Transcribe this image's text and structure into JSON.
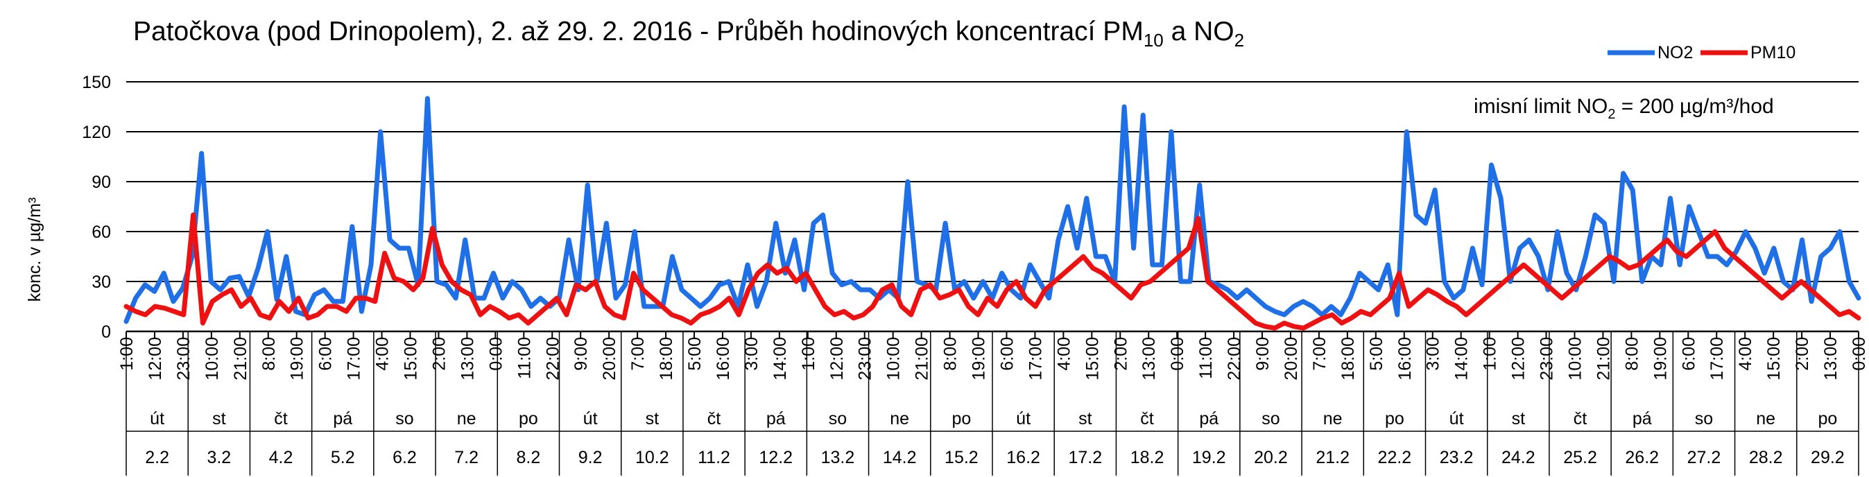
{
  "chart_data": {
    "type": "line",
    "title": "Patočkova (pod Drinopolem), 2. až 29. 2. 2016 - Průběh hodinových koncentrací PM",
    "title_sub1": "10",
    "title_mid": " a NO",
    "title_sub2": "2",
    "ylabel": "konc. v µg/m³",
    "ylim": [
      0,
      150
    ],
    "y_ticks": [
      "0",
      "30",
      "60",
      "90",
      "120",
      "150"
    ],
    "grid": true,
    "legend_position": "top-right",
    "annotation_main": "imisní limit NO",
    "annotation_sub": "2",
    "annotation_tail": " = 200 µg/m³/hod",
    "x_tick_labels": [
      "1:00",
      "12:00",
      "23:00",
      "10:00",
      "21:00",
      "8:00",
      "19:00",
      "6:00",
      "17:00",
      "4:00",
      "15:00",
      "2:00",
      "13:00",
      "0:00",
      "11:00",
      "22:00",
      "9:00",
      "20:00",
      "7:00",
      "18:00",
      "5:00",
      "16:00",
      "3:00",
      "14:00",
      "1:00",
      "12:00",
      "23:00",
      "10:00",
      "21:00",
      "8:00",
      "19:00",
      "6:00",
      "17:00",
      "4:00",
      "15:00",
      "2:00",
      "13:00",
      "0:00",
      "11:00",
      "22:00",
      "9:00",
      "20:00",
      "7:00",
      "18:00",
      "5:00",
      "16:00",
      "3:00",
      "14:00",
      "1:00",
      "12:00",
      "23:00",
      "10:00",
      "21:00",
      "8:00",
      "19:00",
      "6:00",
      "17:00",
      "4:00",
      "15:00",
      "2:00",
      "13:00",
      "0:00"
    ],
    "days": [
      {
        "weekday": "út",
        "date": "2.2"
      },
      {
        "weekday": "st",
        "date": "3.2"
      },
      {
        "weekday": "čt",
        "date": "4.2"
      },
      {
        "weekday": "pá",
        "date": "5.2"
      },
      {
        "weekday": "so",
        "date": "6.2"
      },
      {
        "weekday": "ne",
        "date": "7.2"
      },
      {
        "weekday": "po",
        "date": "8.2"
      },
      {
        "weekday": "út",
        "date": "9.2"
      },
      {
        "weekday": "st",
        "date": "10.2"
      },
      {
        "weekday": "čt",
        "date": "11.2"
      },
      {
        "weekday": "pá",
        "date": "12.2"
      },
      {
        "weekday": "so",
        "date": "13.2"
      },
      {
        "weekday": "ne",
        "date": "14.2"
      },
      {
        "weekday": "po",
        "date": "15.2"
      },
      {
        "weekday": "út",
        "date": "16.2"
      },
      {
        "weekday": "st",
        "date": "17.2"
      },
      {
        "weekday": "čt",
        "date": "18.2"
      },
      {
        "weekday": "pá",
        "date": "19.2"
      },
      {
        "weekday": "so",
        "date": "20.2"
      },
      {
        "weekday": "ne",
        "date": "21.2"
      },
      {
        "weekday": "po",
        "date": "22.2"
      },
      {
        "weekday": "út",
        "date": "23.2"
      },
      {
        "weekday": "st",
        "date": "24.2"
      },
      {
        "weekday": "čt",
        "date": "25.2"
      },
      {
        "weekday": "pá",
        "date": "26.2"
      },
      {
        "weekday": "so",
        "date": "27.2"
      },
      {
        "weekday": "ne",
        "date": "28.2"
      },
      {
        "weekday": "po",
        "date": "29.2"
      }
    ],
    "series": [
      {
        "name": "NO2",
        "color": "#1f6fe6",
        "values": [
          6,
          20,
          28,
          24,
          35,
          18,
          26,
          45,
          107,
          30,
          25,
          32,
          33,
          21,
          38,
          60,
          19,
          45,
          12,
          10,
          22,
          25,
          18,
          18,
          63,
          12,
          40,
          120,
          55,
          50,
          50,
          28,
          140,
          30,
          28,
          20,
          55,
          20,
          20,
          35,
          20,
          30,
          25,
          15,
          20,
          15,
          20,
          55,
          25,
          88,
          30,
          65,
          20,
          28,
          60,
          15,
          15,
          15,
          45,
          25,
          20,
          15,
          20,
          28,
          30,
          15,
          40,
          15,
          30,
          65,
          35,
          55,
          25,
          65,
          70,
          35,
          28,
          30,
          25,
          25,
          20,
          25,
          20,
          90,
          30,
          28,
          25,
          65,
          25,
          30,
          20,
          30,
          20,
          35,
          25,
          20,
          40,
          30,
          20,
          55,
          75,
          50,
          80,
          45,
          45,
          30,
          135,
          50,
          130,
          40,
          40,
          120,
          30,
          30,
          88,
          30,
          28,
          25,
          20,
          25,
          20,
          15,
          12,
          10,
          15,
          18,
          15,
          10,
          15,
          10,
          20,
          35,
          30,
          25,
          40,
          10,
          120,
          70,
          65,
          85,
          30,
          20,
          25,
          50,
          28,
          100,
          80,
          30,
          50,
          55,
          45,
          25,
          60,
          35,
          25,
          45,
          70,
          65,
          30,
          95,
          85,
          30,
          45,
          40,
          80,
          40,
          75,
          60,
          45,
          45,
          40,
          48,
          60,
          50,
          35,
          50,
          30,
          25,
          55,
          18,
          45,
          50,
          60,
          30,
          20
        ]
      },
      {
        "name": "PM10",
        "color": "#ee1111",
        "values": [
          15,
          12,
          10,
          15,
          14,
          12,
          10,
          70,
          5,
          18,
          22,
          25,
          15,
          20,
          10,
          8,
          18,
          12,
          20,
          8,
          10,
          15,
          15,
          12,
          20,
          20,
          18,
          47,
          32,
          30,
          25,
          32,
          62,
          40,
          30,
          25,
          22,
          10,
          15,
          12,
          8,
          10,
          5,
          10,
          15,
          20,
          10,
          28,
          25,
          30,
          15,
          10,
          8,
          35,
          25,
          20,
          15,
          10,
          8,
          5,
          10,
          12,
          15,
          20,
          10,
          25,
          35,
          40,
          35,
          38,
          30,
          35,
          25,
          15,
          10,
          12,
          8,
          10,
          15,
          25,
          28,
          15,
          10,
          25,
          28,
          20,
          22,
          25,
          15,
          10,
          20,
          15,
          25,
          30,
          20,
          15,
          25,
          30,
          35,
          40,
          45,
          38,
          35,
          30,
          25,
          20,
          28,
          30,
          35,
          40,
          45,
          50,
          68,
          30,
          25,
          20,
          15,
          10,
          5,
          3,
          2,
          5,
          3,
          2,
          5,
          8,
          10,
          5,
          8,
          12,
          10,
          15,
          20,
          35,
          15,
          20,
          25,
          22,
          18,
          15,
          10,
          15,
          20,
          25,
          30,
          35,
          40,
          35,
          30,
          25,
          20,
          25,
          30,
          35,
          40,
          45,
          42,
          38,
          40,
          45,
          50,
          55,
          48,
          45,
          50,
          55,
          60,
          50,
          45,
          40,
          35,
          30,
          25,
          20,
          25,
          30,
          25,
          20,
          15,
          10,
          12,
          8
        ]
      }
    ]
  }
}
